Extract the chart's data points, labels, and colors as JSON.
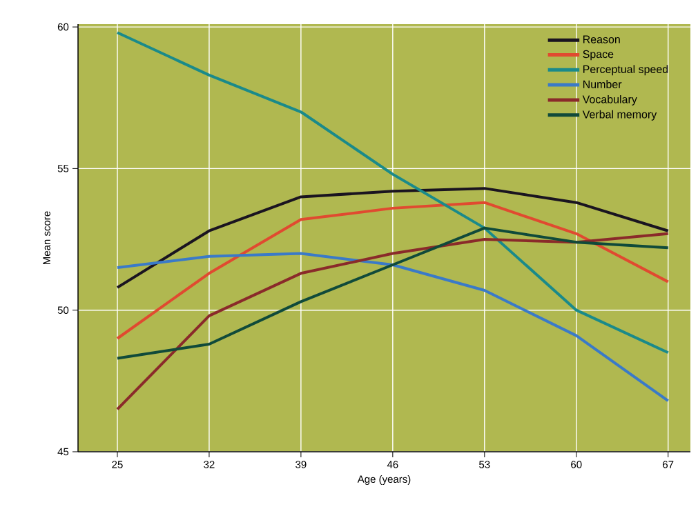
{
  "chart_data": {
    "type": "line",
    "xlabel": "Age (years)",
    "ylabel": "Mean score",
    "x": [
      25,
      32,
      39,
      46,
      53,
      60,
      67
    ],
    "series": [
      {
        "name": "Reason",
        "color": "#1a1420",
        "values": [
          50.8,
          52.8,
          54.0,
          54.2,
          54.3,
          53.8,
          52.8
        ]
      },
      {
        "name": "Space",
        "color": "#e04a30",
        "values": [
          49.0,
          51.3,
          53.2,
          53.6,
          53.8,
          52.7,
          51.0
        ]
      },
      {
        "name": "Perceptual speed",
        "color": "#1a8a8a",
        "values": [
          59.8,
          58.3,
          57.0,
          54.8,
          52.9,
          50.0,
          48.5
        ]
      },
      {
        "name": "Number",
        "color": "#3a7ac8",
        "values": [
          51.5,
          51.9,
          52.0,
          51.6,
          50.7,
          49.1,
          46.8
        ]
      },
      {
        "name": "Vocabulary",
        "color": "#8a2a2a",
        "values": [
          46.5,
          49.8,
          51.3,
          52.0,
          52.5,
          52.4,
          52.7
        ]
      },
      {
        "name": "Verbal memory",
        "color": "#104a3a",
        "values": [
          48.3,
          48.8,
          50.3,
          51.6,
          52.9,
          52.4,
          52.2
        ]
      }
    ],
    "xlim": [
      22,
      68.7
    ],
    "ylim": [
      45,
      60.1
    ],
    "xticks": [
      25,
      32,
      39,
      46,
      53,
      60,
      67
    ],
    "yticks": [
      45,
      50,
      55,
      60
    ],
    "grid": true,
    "legend": "top right",
    "marker": "none",
    "line_style": "solid"
  }
}
